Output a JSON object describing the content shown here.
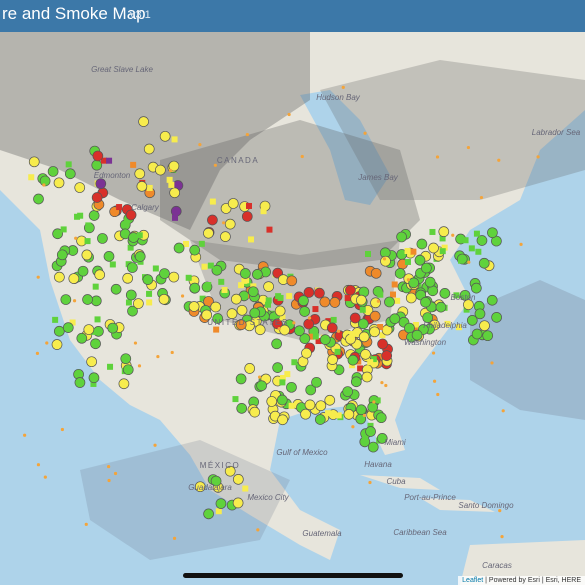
{
  "header": {
    "title": "re and Smoke Map",
    "version": "v3.1"
  },
  "map": {
    "labels": [
      "Great Slave Lake",
      "Hudson Bay",
      "CANADA",
      "Edmonton",
      "Calgary",
      "James Bay",
      "Labrador Sea",
      "UNITED STATES",
      "Boston",
      "Philadelphia",
      "Washington",
      "Miami",
      "Havana",
      "Cuba",
      "Gulf of Mexico",
      "MÉXICO",
      "Guadalajara",
      "Mexico City",
      "Guatemala",
      "Port-au-Prince",
      "Santo Domingo",
      "Caribbean Sea",
      "Caracas"
    ]
  },
  "attribution": {
    "leaflet": "Leaflet",
    "powered": "Powered by Esri",
    "esri": "Esri, HERE"
  }
}
